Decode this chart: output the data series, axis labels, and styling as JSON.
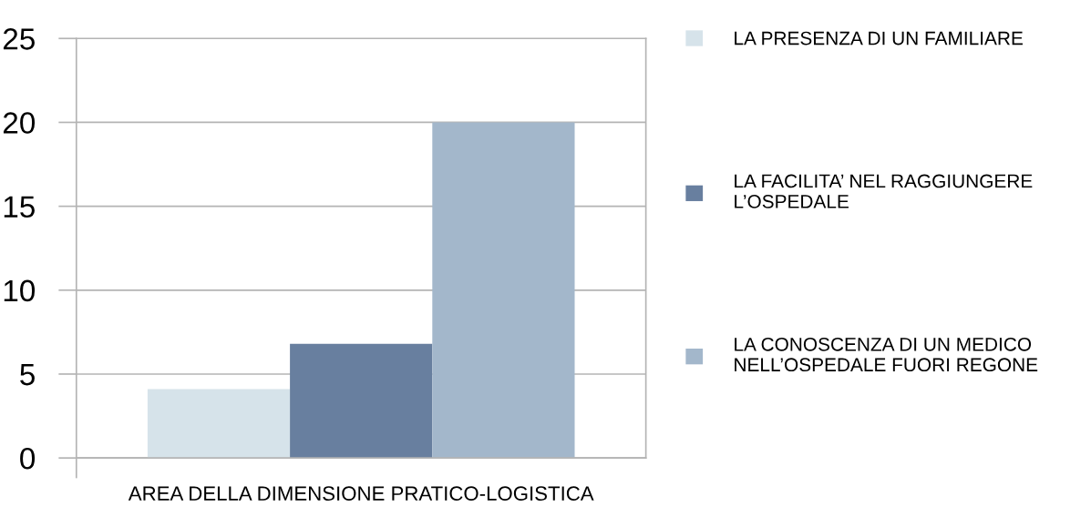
{
  "chart_data": {
    "type": "bar",
    "categories": [
      "AREA DELLA DIMENSIONE PRATICO-LOGISTICA"
    ],
    "series": [
      {
        "name": "LA PRESENZA DI UN FAMILIARE",
        "color": "#d6e3ea",
        "values": [
          4.1
        ]
      },
      {
        "name": "LA FACILITA’ NEL RAGGIUNGERE\nL’OSPEDALE",
        "color": "#687f9f",
        "values": [
          6.8
        ]
      },
      {
        "name": "LA CONOSCENZA DI UN MEDICO\nNELL’OSPEDALE FUORI REGONE",
        "color": "#a3b7cb",
        "values": [
          20
        ]
      }
    ],
    "ylim": [
      0,
      25
    ],
    "yticks": [
      0,
      5,
      10,
      15,
      20,
      25
    ],
    "grid": "y",
    "legend": "right"
  }
}
